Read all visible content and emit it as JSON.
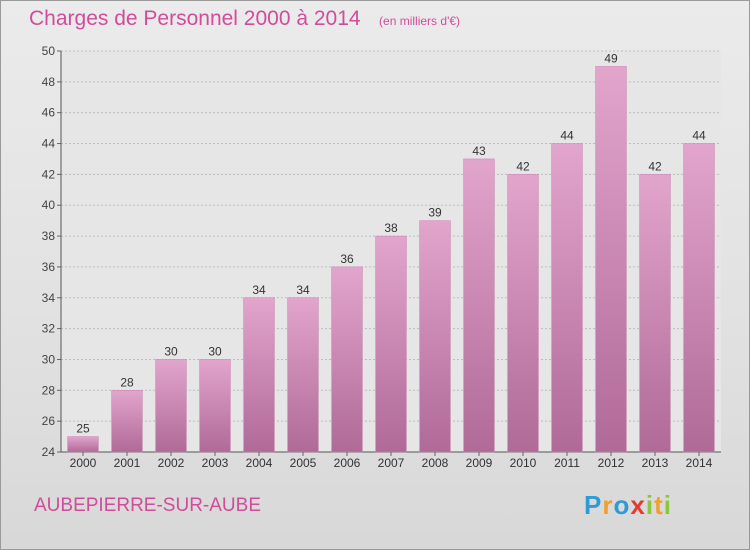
{
  "chart_data": {
    "type": "bar",
    "title": "Charges de Personnel 2000 à 2014",
    "subtitle": "(en milliers d'€)",
    "categories": [
      "2000",
      "2001",
      "2002",
      "2003",
      "2004",
      "2005",
      "2006",
      "2007",
      "2008",
      "2009",
      "2010",
      "2011",
      "2012",
      "2013",
      "2014"
    ],
    "values": [
      25,
      28,
      30,
      30,
      34,
      34,
      36,
      38,
      39,
      43,
      42,
      44,
      49,
      42,
      44
    ],
    "value_labels": [
      "25",
      "28",
      "30",
      "30",
      "34",
      "34",
      "36",
      "38",
      "39",
      "43",
      "42",
      "44",
      "49",
      "42",
      "44"
    ],
    "ylim": [
      24,
      50
    ],
    "yticks": [
      24,
      26,
      28,
      30,
      32,
      34,
      36,
      38,
      40,
      42,
      44,
      46,
      48,
      50
    ],
    "ytick_labels": [
      "24",
      "26",
      "28",
      "30",
      "32",
      "34",
      "36",
      "38",
      "40",
      "42",
      "44",
      "46",
      "48",
      "50"
    ],
    "grid": true,
    "bar_color": "#d98fbe",
    "label_color": "#333333"
  },
  "footer": {
    "commune": "AUBEPIERRE-SUR-AUBE"
  },
  "brand": {
    "letters": [
      "P",
      "r",
      "o",
      "x",
      "i",
      "t",
      "i"
    ],
    "colors": [
      "#2e9bd6",
      "#f0a033",
      "#2e9bd6",
      "#e63a2c",
      "#8cc63f",
      "#f0a033",
      "#8cc63f"
    ]
  }
}
